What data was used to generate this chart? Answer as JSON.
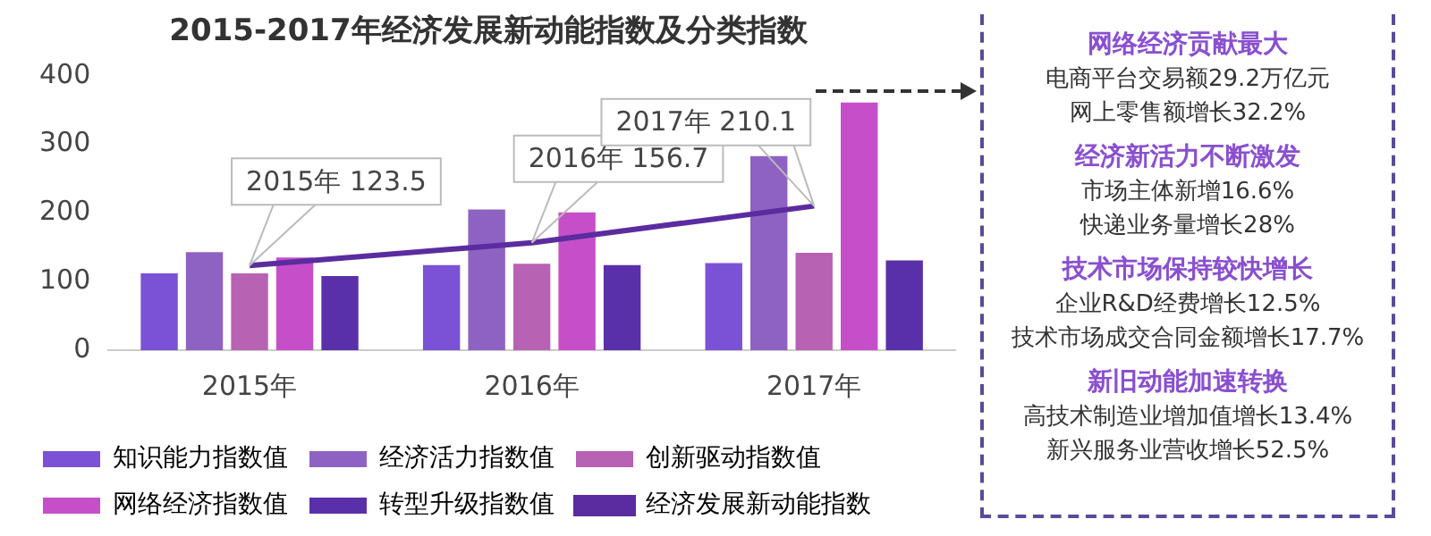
{
  "chart_data": {
    "type": "bar",
    "title": "2015-2017年经济发展新动能指数及分类指数",
    "categories": [
      "2015年",
      "2016年",
      "2017年"
    ],
    "series": [
      {
        "name": "知识能力指数值",
        "color": "#7b52d6",
        "values": [
          112,
          124,
          127
        ]
      },
      {
        "name": "经济活力指数值",
        "color": "#8e62c2",
        "values": [
          143,
          205,
          283
        ]
      },
      {
        "name": "创新驱动指数值",
        "color": "#b862b4",
        "values": [
          112,
          126,
          142
        ]
      },
      {
        "name": "网络经济指数值",
        "color": "#c64fc9",
        "values": [
          135,
          201,
          361
        ]
      },
      {
        "name": "转型升级指数值",
        "color": "#5a30aa",
        "values": [
          108,
          124,
          131
        ]
      },
      {
        "name": "经济发展新动能指数",
        "type": "line",
        "color": "#5b2ca0",
        "values": [
          123.5,
          156.7,
          210.1
        ]
      }
    ],
    "ylim": [
      0,
      400
    ],
    "yticks": [
      0,
      100,
      200,
      300,
      400
    ],
    "grid": false,
    "legend": "bottom",
    "annotations": [
      {
        "text": "2015年 123.5",
        "x": "2015年",
        "y": 123.5
      },
      {
        "text": "2016年 156.7",
        "x": "2016年",
        "y": 156.7
      },
      {
        "text": "2017年 210.1",
        "x": "2017年",
        "y": 210.1
      },
      "网络经济贡献最大",
      "电商平台交易额29.2万亿元",
      "网上零售额增长32.2%",
      "经济新活力不断激发",
      "市场主体新增16.6%",
      "快递业务量增长28%",
      "技术市场保持较快增长",
      "企业R&D经费增长12.5%",
      "技术市场成交合同金额增长17.7%",
      "新旧动能加速转换",
      "高技术制造业增加值增长13.4%",
      "新兴服务业营收增长52.5%"
    ]
  }
}
